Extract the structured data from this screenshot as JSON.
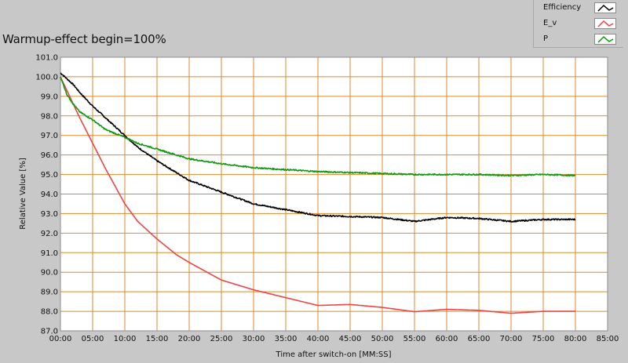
{
  "title": "Warmup-effect begin=100%",
  "chart_data": {
    "type": "line",
    "xlabel": "Time after switch-on [MM:SS]",
    "ylabel": "Relative Value [%]",
    "xlim": [
      0,
      85
    ],
    "ylim": [
      87,
      101
    ],
    "x_ticks": [
      "00:00",
      "05:00",
      "10:00",
      "15:00",
      "20:00",
      "25:00",
      "30:00",
      "35:00",
      "40:00",
      "45:00",
      "50:00",
      "55:00",
      "60:00",
      "65:00",
      "70:00",
      "75:00",
      "80:00",
      "85:00"
    ],
    "y_ticks": [
      "87.0",
      "88.0",
      "89.0",
      "90.0",
      "91.0",
      "92.0",
      "93.0",
      "94.0",
      "95.0",
      "96.0",
      "97.0",
      "98.0",
      "99.0",
      "100.0",
      "101.0"
    ],
    "grid": true,
    "legend_position": "top-right",
    "series": [
      {
        "name": "Efficiency",
        "color": "#000000",
        "x": [
          0,
          1,
          2,
          3,
          5,
          7,
          9,
          10,
          12,
          15,
          18,
          20,
          25,
          30,
          35,
          40,
          45,
          50,
          55,
          60,
          65,
          70,
          75,
          80
        ],
        "y": [
          100.2,
          99.9,
          99.6,
          99.2,
          98.5,
          97.9,
          97.3,
          97.0,
          96.4,
          95.7,
          95.1,
          94.7,
          94.1,
          93.5,
          93.2,
          92.9,
          92.85,
          92.8,
          92.6,
          92.8,
          92.75,
          92.6,
          92.7,
          92.7
        ]
      },
      {
        "name": "E_v",
        "color": "#ee4444",
        "x": [
          0,
          1,
          2,
          3,
          5,
          7,
          10,
          12,
          15,
          18,
          20,
          25,
          30,
          35,
          40,
          45,
          50,
          55,
          60,
          65,
          70,
          75,
          80
        ],
        "y": [
          100.0,
          99.3,
          98.6,
          97.9,
          96.6,
          95.3,
          93.5,
          92.6,
          91.7,
          90.9,
          90.5,
          89.6,
          89.1,
          88.7,
          88.3,
          88.35,
          88.2,
          87.98,
          88.1,
          88.05,
          87.9,
          88.0,
          88.0
        ]
      },
      {
        "name": "P",
        "color": "#119911",
        "x": [
          0,
          1,
          2,
          3,
          5,
          7,
          10,
          12,
          15,
          18,
          20,
          25,
          30,
          35,
          40,
          45,
          50,
          55,
          60,
          65,
          70,
          75,
          80
        ],
        "y": [
          100.0,
          99.1,
          98.6,
          98.2,
          97.8,
          97.3,
          96.9,
          96.6,
          96.3,
          96.0,
          95.8,
          95.55,
          95.35,
          95.25,
          95.15,
          95.1,
          95.05,
          95.0,
          95.0,
          95.0,
          94.95,
          95.0,
          94.95
        ]
      }
    ]
  }
}
